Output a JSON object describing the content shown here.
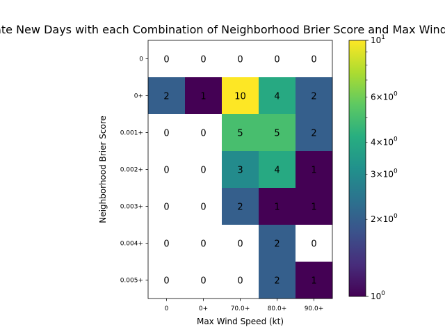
{
  "chart_data": {
    "type": "heatmap",
    "title": "Moderate New Days with each Combination of Neighborhood Brier Score and Max Wind Speed",
    "xlabel": "Max Wind Speed (kt)",
    "ylabel": "Neighborhood Brier Score",
    "x_categories": [
      "0",
      "0+",
      "70.0+",
      "80.0+",
      "90.0+"
    ],
    "y_categories": [
      "0",
      "0+",
      "0.001+",
      "0.002+",
      "0.003+",
      "0.004+",
      "0.005+"
    ],
    "values": [
      [
        0,
        0,
        0,
        0,
        0
      ],
      [
        2,
        1,
        10,
        4,
        2
      ],
      [
        0,
        0,
        5,
        5,
        2
      ],
      [
        0,
        0,
        3,
        4,
        1
      ],
      [
        0,
        0,
        2,
        1,
        1
      ],
      [
        0,
        0,
        0,
        2,
        0
      ],
      [
        0,
        0,
        0,
        2,
        1
      ]
    ],
    "color_scale": "log",
    "colormap": "viridis",
    "zero_color": "#ffffff",
    "clim": [
      1,
      10
    ],
    "colorbar": {
      "major_ticks": [
        {
          "value": 1,
          "label": "10^0"
        },
        {
          "value": 10,
          "label": "10^1"
        }
      ],
      "minor_ticks": [
        {
          "value": 2,
          "label": "2×10^0"
        },
        {
          "value": 3,
          "label": "3×10^0"
        },
        {
          "value": 4,
          "label": "4×10^0"
        },
        {
          "value": 6,
          "label": "6×10^0"
        }
      ],
      "unlabeled_ticks": [
        5,
        7,
        8,
        9
      ]
    }
  }
}
